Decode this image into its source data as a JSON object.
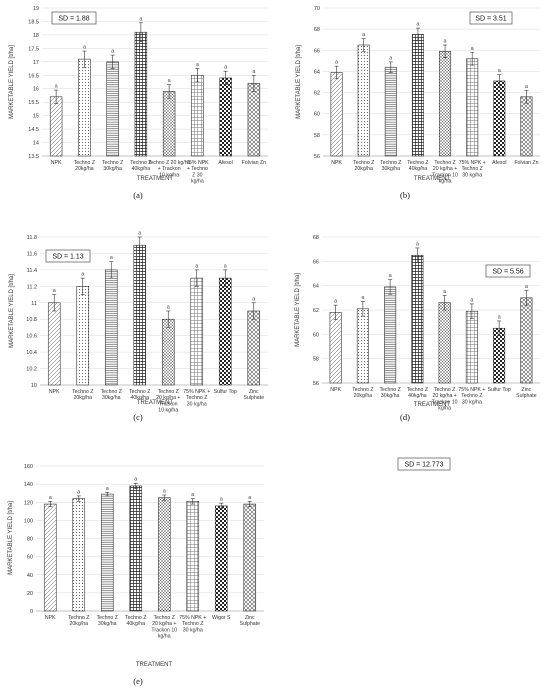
{
  "chart_data": [
    {
      "type": "bar",
      "panel_label": "(a)",
      "sd_label": "SD = 1.88",
      "ylabel": "MARKETABLE YIELD [t/ha]",
      "xlabel": "TREATMENT",
      "ylim": [
        13.5,
        19
      ],
      "yticks": [
        13.5,
        14,
        14.5,
        15,
        15.5,
        16,
        16.5,
        17,
        17.5,
        18,
        18.5,
        19
      ],
      "categories": [
        [
          "NPK"
        ],
        [
          "Techno Z",
          "20kg/ha"
        ],
        [
          "Techno Z",
          "30kg/ha"
        ],
        [
          "Techno Z",
          "40kg/ha"
        ],
        [
          "Techno Z 20 kg/ha",
          "+ Trackon",
          "10 kg/ha"
        ],
        [
          "75% NPK",
          "+ Techno",
          "Z 30",
          "kg/ha"
        ],
        [
          "Afesol"
        ],
        [
          "Folvian Zn"
        ]
      ],
      "values": [
        15.7,
        17.1,
        17.0,
        18.1,
        15.9,
        16.5,
        16.4,
        16.2
      ],
      "errors": [
        0.25,
        0.3,
        0.25,
        0.35,
        0.25,
        0.25,
        0.25,
        0.3
      ],
      "sig": [
        "a",
        "a",
        "a",
        "a",
        "a",
        "a",
        "a",
        "a"
      ],
      "patterns": [
        "diag",
        "dots",
        "hlines",
        "grid",
        "dense",
        "vhatch",
        "checker",
        "cross"
      ]
    },
    {
      "type": "bar",
      "panel_label": "(b)",
      "sd_label": "SD = 3.51",
      "ylabel": "MARKETABLE YIELD [t/ha]",
      "xlabel": "TREATMENT",
      "ylim": [
        56,
        70
      ],
      "yticks": [
        56,
        58,
        60,
        62,
        64,
        66,
        68,
        70
      ],
      "categories": [
        [
          "NPK"
        ],
        [
          "Techno Z",
          "20kg/ha"
        ],
        [
          "Techno Z",
          "30kg/ha"
        ],
        [
          "Techno Z",
          "40kg/ha"
        ],
        [
          "Techno Z",
          "20 kg/ha +",
          "Trackon 10",
          "kg/ha"
        ],
        [
          "75% NPK +",
          "Techno Z",
          "30 kg/ha"
        ],
        [
          "Afesol"
        ],
        [
          "Folvian Zn"
        ]
      ],
      "values": [
        63.9,
        66.5,
        64.4,
        67.5,
        65.9,
        65.2,
        63.1,
        61.6
      ],
      "errors": [
        0.6,
        0.6,
        0.5,
        0.6,
        0.6,
        0.6,
        0.6,
        0.6
      ],
      "sig": [
        "a",
        "a",
        "a",
        "a",
        "a",
        "a",
        "a",
        "a"
      ],
      "patterns": [
        "diag",
        "dots",
        "hlines",
        "grid",
        "dense",
        "vhatch",
        "checker",
        "cross"
      ]
    },
    {
      "type": "bar",
      "panel_label": "(c)",
      "sd_label": "SD = 1.13",
      "ylabel": "MARKETABLE YIELD [t/ha]",
      "xlabel": "TREATMENT",
      "ylim": [
        10,
        11.8
      ],
      "yticks": [
        10,
        10.2,
        10.4,
        10.6,
        10.8,
        11,
        11.2,
        11.4,
        11.6,
        11.8
      ],
      "categories": [
        [
          "NPK"
        ],
        [
          "Techno Z",
          "20kg/ha"
        ],
        [
          "Techno Z",
          "30kg/ha"
        ],
        [
          "Techno Z",
          "40kg/ha"
        ],
        [
          "Techno Z",
          "20 kg/ha +",
          "Trackon",
          "10 kg/ha"
        ],
        [
          "75% NPK +",
          "Techno Z",
          "30 kg/ha"
        ],
        [
          "Sulfur Top"
        ],
        [
          "Zinc",
          "Sulphate"
        ]
      ],
      "values": [
        11.0,
        11.2,
        11.4,
        11.7,
        10.8,
        11.3,
        11.3,
        10.9
      ],
      "errors": [
        0.1,
        0.1,
        0.1,
        0.1,
        0.1,
        0.1,
        0.1,
        0.1
      ],
      "sig": [
        "a",
        "a",
        "a",
        "a",
        "a",
        "a",
        "a",
        "a"
      ],
      "patterns": [
        "diag",
        "dots",
        "hlines",
        "grid",
        "dense",
        "vhatch",
        "checker",
        "cross"
      ]
    },
    {
      "type": "bar",
      "panel_label": "(d)",
      "sd_label": "SD = 5.56",
      "ylabel": "MARKETABLE YIELD [t/ha]",
      "xlabel": "TREATMENT",
      "ylim": [
        56,
        68
      ],
      "yticks": [
        56,
        58,
        60,
        62,
        64,
        66,
        68
      ],
      "categories": [
        [
          "NPK"
        ],
        [
          "Techno Z",
          "20kg/ha"
        ],
        [
          "Techno Z",
          "30kg/ha"
        ],
        [
          "Techno Z",
          "40kg/ha"
        ],
        [
          "Techno Z",
          "20 kg/ha +",
          "Trackon 10",
          "kg/ha"
        ],
        [
          "75% NPK +",
          "Techno Z",
          "30 kg/ha"
        ],
        [
          "Sulfur Top"
        ],
        [
          "Zinc",
          "Sulphate"
        ]
      ],
      "values": [
        61.8,
        62.1,
        63.9,
        66.5,
        62.6,
        61.9,
        60.5,
        63.0
      ],
      "errors": [
        0.6,
        0.6,
        0.6,
        0.6,
        0.6,
        0.6,
        0.6,
        0.6
      ],
      "sig": [
        "a",
        "a",
        "a",
        "a",
        "a",
        "a",
        "a",
        "a"
      ],
      "patterns": [
        "diag",
        "dots",
        "hlines",
        "grid",
        "dense",
        "vhatch",
        "checker",
        "cross"
      ]
    },
    {
      "type": "bar",
      "panel_label": "(e)",
      "sd_label": "SD = 12.773",
      "ylabel": "MARKETABLE YIELD [t/ha]",
      "xlabel": "TREATMENT",
      "ylim": [
        0,
        160
      ],
      "yticks": [
        0,
        20,
        40,
        60,
        80,
        100,
        120,
        140,
        160
      ],
      "categories": [
        [
          "NPK"
        ],
        [
          "Techno Z",
          "20kg/ha"
        ],
        [
          "Techno Z",
          "30kg/ha"
        ],
        [
          "Techno Z",
          "40kg/ha"
        ],
        [
          "Techno Z",
          "20 kg/ha +",
          "Trackon 10",
          "kg/ha"
        ],
        [
          "75% NPK +",
          "Techno Z",
          "30 kg/ha"
        ],
        [
          "Wigor S"
        ],
        [
          "Zinc",
          "Sulphate"
        ]
      ],
      "values": [
        118,
        124,
        129,
        138,
        125,
        121,
        116,
        118
      ],
      "errors": [
        3,
        3,
        2,
        3,
        3,
        3,
        3,
        3
      ],
      "sig": [
        "a",
        "a",
        "a",
        "a",
        "a",
        "a",
        "a",
        "a"
      ],
      "patterns": [
        "diag",
        "dots",
        "hlines",
        "grid",
        "dense",
        "vhatch",
        "checker",
        "cross"
      ]
    }
  ]
}
